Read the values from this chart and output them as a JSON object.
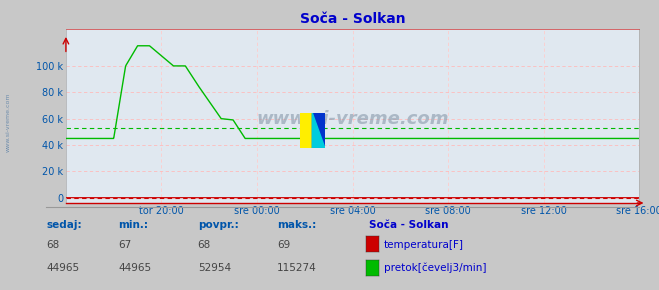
{
  "title": "Soča - Solkan",
  "bg_color": "#c8c8c8",
  "plot_bg_color": "#e0e8f0",
  "title_color": "#0000cc",
  "text_color": "#0055aa",
  "watermark": "www.si-vreme.com",
  "x_ticks_labels": [
    "tor 20:00",
    "sre 00:00",
    "sre 04:00",
    "sre 08:00",
    "sre 12:00",
    "sre 16:00"
  ],
  "y_ticks": [
    0,
    20000,
    40000,
    60000,
    80000,
    100000
  ],
  "y_ticks_labels": [
    "0",
    "20 k",
    "40 k",
    "60 k",
    "80 k",
    "100 k"
  ],
  "ylim": [
    -4000,
    128000
  ],
  "xlim_hours": [
    0,
    24
  ],
  "x_tick_hours": [
    4,
    8,
    12,
    16,
    20,
    24
  ],
  "temp_color": "#cc0000",
  "flow_color": "#00bb00",
  "flow_avg": 52954,
  "temp_avg": 68,
  "flow_base": 44965,
  "flow_peak": 115274,
  "legend_title": "Soča - Solkan",
  "label_temp": "temperatura[F]",
  "label_flow": "pretok[čevelj3/min]",
  "stats_labels": [
    "sedaj:",
    "min.:",
    "povpr.:",
    "maks.:"
  ],
  "temp_sedaj": 68,
  "temp_min_val": 67,
  "temp_povpr": 68,
  "temp_maks": 69,
  "flow_sedaj": 44965,
  "flow_min_val": 44965,
  "flow_povpr": 52954,
  "flow_maks": 115274,
  "flow_shape_x": [
    0,
    2.0,
    2.5,
    3.0,
    3.5,
    4.5,
    5.0,
    5.5,
    6.5,
    7.0,
    7.5,
    8.5,
    24
  ],
  "flow_shape_y": [
    44965,
    44965,
    100000,
    115274,
    115274,
    100000,
    100000,
    86000,
    60000,
    59000,
    44965,
    44965,
    44965
  ],
  "grid_h_color": "#ffbbbb",
  "grid_v_color": "#ffcccc",
  "spine_bottom_color": "#cc0000",
  "spine_top_color": "#cc0000",
  "watermark_color": "#8899aa",
  "watermark_alpha": 0.6
}
